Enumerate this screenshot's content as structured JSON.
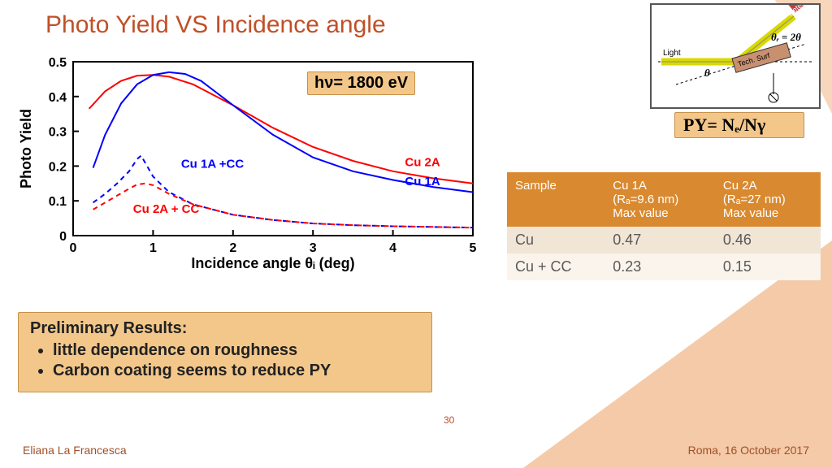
{
  "title": "Photo Yield VS Incidence angle",
  "energy_label": "hν= 1800 eV",
  "formula": "PY= Nₑ/Nγ",
  "page_number": "30",
  "footer_author": "Eliana La Francesca",
  "footer_date": "Roma, 16 October 2017",
  "results": {
    "heading": "Preliminary Results:",
    "bullets": [
      "little dependence on roughness",
      "Carbon coating seems to reduce PY"
    ]
  },
  "diagram": {
    "light_label": "Light",
    "surf_label": "Tech. Surf",
    "detector_label": "Detector",
    "theta_label": "θ",
    "theta_r_label": "θᵣ = 2θ",
    "beam_color": "#d9d900",
    "detector_color": "#c04040",
    "surf_color": "#c99070"
  },
  "table": {
    "headers": [
      "Sample",
      "Cu 1A\n(Rₐ=9.6 nm)\nMax value",
      "Cu 2A\n(Rₐ=27 nm)\nMax value"
    ],
    "rows": [
      [
        "Cu",
        "0.47",
        "0.46"
      ],
      [
        "Cu + CC",
        "0.23",
        "0.15"
      ]
    ],
    "header_bg": "#d98a30",
    "header_fg": "#ffffff",
    "row_odd_bg": "#f1e5d6",
    "row_even_bg": "#faf4ec",
    "cell_fg": "#5a5a5a"
  },
  "chart": {
    "type": "line",
    "xlabel": "Incidence angle θᵢ (deg)",
    "ylabel": "Photo Yield",
    "xlim": [
      0,
      5
    ],
    "xtick_step": 1,
    "ylim": [
      0,
      0.5
    ],
    "ytick_step": 0.1,
    "axis_color": "#000000",
    "axis_linewidth": 2,
    "tick_fontsize": 16,
    "label_fontsize": 18,
    "label_fontweight": "bold",
    "background_color": "#ffffff",
    "series": [
      {
        "name": "Cu 2A",
        "color": "#ff0000",
        "dash": "none",
        "linewidth": 2,
        "label_pos": [
          4.15,
          0.2
        ],
        "points": [
          [
            0.2,
            0.365
          ],
          [
            0.4,
            0.415
          ],
          [
            0.6,
            0.445
          ],
          [
            0.8,
            0.46
          ],
          [
            1.0,
            0.462
          ],
          [
            1.2,
            0.457
          ],
          [
            1.5,
            0.435
          ],
          [
            2.0,
            0.375
          ],
          [
            2.5,
            0.31
          ],
          [
            3.0,
            0.255
          ],
          [
            3.5,
            0.215
          ],
          [
            4.0,
            0.185
          ],
          [
            4.5,
            0.165
          ],
          [
            5.0,
            0.15
          ]
        ]
      },
      {
        "name": "Cu 1A",
        "color": "#0000ff",
        "dash": "none",
        "linewidth": 2,
        "label_pos": [
          4.15,
          0.145
        ],
        "points": [
          [
            0.25,
            0.195
          ],
          [
            0.4,
            0.29
          ],
          [
            0.6,
            0.38
          ],
          [
            0.8,
            0.435
          ],
          [
            1.0,
            0.462
          ],
          [
            1.2,
            0.47
          ],
          [
            1.4,
            0.465
          ],
          [
            1.6,
            0.445
          ],
          [
            2.0,
            0.375
          ],
          [
            2.5,
            0.29
          ],
          [
            3.0,
            0.225
          ],
          [
            3.5,
            0.185
          ],
          [
            4.0,
            0.16
          ],
          [
            4.5,
            0.14
          ],
          [
            5.0,
            0.125
          ]
        ]
      },
      {
        "name": "Cu 1A +CC",
        "color": "#0000ff",
        "dash": "6,5",
        "linewidth": 2,
        "label_pos": [
          1.35,
          0.195
        ],
        "points": [
          [
            0.25,
            0.095
          ],
          [
            0.4,
            0.12
          ],
          [
            0.55,
            0.15
          ],
          [
            0.7,
            0.185
          ],
          [
            0.8,
            0.22
          ],
          [
            0.85,
            0.23
          ],
          [
            0.9,
            0.21
          ],
          [
            1.0,
            0.17
          ],
          [
            1.2,
            0.125
          ],
          [
            1.5,
            0.09
          ],
          [
            2.0,
            0.06
          ],
          [
            2.5,
            0.045
          ],
          [
            3.0,
            0.035
          ],
          [
            3.5,
            0.03
          ],
          [
            4.0,
            0.027
          ],
          [
            4.5,
            0.025
          ],
          [
            5.0,
            0.023
          ]
        ]
      },
      {
        "name": "Cu 2A + CC",
        "color": "#ff0000",
        "dash": "6,5",
        "linewidth": 2,
        "label_pos": [
          0.75,
          0.065
        ],
        "points": [
          [
            0.25,
            0.075
          ],
          [
            0.4,
            0.095
          ],
          [
            0.55,
            0.115
          ],
          [
            0.7,
            0.135
          ],
          [
            0.8,
            0.147
          ],
          [
            0.9,
            0.15
          ],
          [
            1.0,
            0.145
          ],
          [
            1.2,
            0.12
          ],
          [
            1.5,
            0.09
          ],
          [
            2.0,
            0.06
          ],
          [
            2.5,
            0.045
          ],
          [
            3.0,
            0.035
          ],
          [
            3.5,
            0.03
          ],
          [
            4.0,
            0.027
          ],
          [
            4.5,
            0.025
          ],
          [
            5.0,
            0.023
          ]
        ]
      }
    ]
  },
  "colors": {
    "title": "#c05028",
    "annot_bg": "#f3c78a",
    "annot_border": "#c79149",
    "bg_triangle": "#e78a3e",
    "footer_text": "#a05028"
  }
}
